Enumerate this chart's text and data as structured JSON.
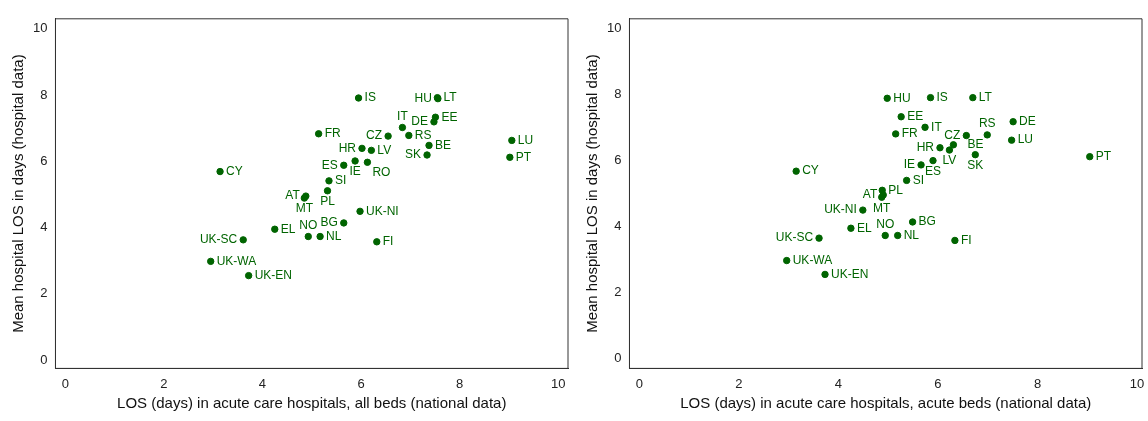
{
  "chart_data": [
    {
      "type": "scatter",
      "xlabel": "LOS (days) in acute care hospitals, all beds (national data)",
      "ylabel": "Mean hospital LOS in days (hospital data)",
      "color": "#006400",
      "marker": "circle",
      "grid": false,
      "legend": false,
      "xlim": [
        -0.2,
        10.2
      ],
      "xticks": [
        0,
        2,
        4,
        6,
        8,
        10
      ],
      "ylim": [
        -0.25,
        10.3
      ],
      "yticks": [
        0,
        2,
        4,
        6,
        8,
        10
      ],
      "x": [
        5.95,
        7.55,
        7.56,
        7.51,
        7.48,
        6.84,
        6.55,
        6.97,
        5.14,
        6.02,
        6.21,
        7.38,
        7.34,
        9.06,
        9.02,
        5.88,
        5.65,
        6.13,
        3.14,
        5.35,
        5.32,
        4.88,
        4.85,
        5.98,
        5.65,
        4.25,
        3.61,
        4.93,
        5.17,
        6.32,
        2.95,
        3.72
      ],
      "values": [
        7.91,
        7.92,
        7.89,
        7.33,
        7.19,
        7.02,
        6.76,
        6.78,
        6.83,
        6.39,
        6.33,
        6.48,
        6.19,
        6.63,
        6.12,
        6.01,
        5.88,
        5.97,
        5.69,
        5.41,
        5.11,
        4.95,
        4.89,
        4.49,
        4.14,
        3.95,
        3.63,
        3.73,
        3.73,
        3.57,
        2.98,
        2.55
      ],
      "annotations": [
        {
          "text": "IS",
          "x": 5.95,
          "y": 7.91
        },
        {
          "text": "LT",
          "x": 7.55,
          "y": 7.92
        },
        {
          "text": "HU",
          "x": 7.56,
          "y": 7.89
        },
        {
          "text": "EE",
          "x": 7.51,
          "y": 7.33
        },
        {
          "text": "DE",
          "x": 7.48,
          "y": 7.19
        },
        {
          "text": "IT",
          "x": 6.84,
          "y": 7.02
        },
        {
          "text": "CZ",
          "x": 6.55,
          "y": 6.76
        },
        {
          "text": "RS",
          "x": 6.97,
          "y": 6.78
        },
        {
          "text": "FR",
          "x": 5.14,
          "y": 6.83
        },
        {
          "text": "HR",
          "x": 6.02,
          "y": 6.39
        },
        {
          "text": "LV",
          "x": 6.21,
          "y": 6.33
        },
        {
          "text": "BE",
          "x": 7.38,
          "y": 6.48
        },
        {
          "text": "SK",
          "x": 7.34,
          "y": 6.19
        },
        {
          "text": "LU",
          "x": 9.06,
          "y": 6.63
        },
        {
          "text": "PT",
          "x": 9.02,
          "y": 6.12
        },
        {
          "text": "IE",
          "x": 5.88,
          "y": 6.01
        },
        {
          "text": "ES",
          "x": 5.65,
          "y": 5.88
        },
        {
          "text": "RO",
          "x": 6.13,
          "y": 5.97
        },
        {
          "text": "CY",
          "x": 3.14,
          "y": 5.69
        },
        {
          "text": "SI",
          "x": 5.35,
          "y": 5.41
        },
        {
          "text": "PL",
          "x": 5.32,
          "y": 5.11
        },
        {
          "text": "AT",
          "x": 4.88,
          "y": 4.95
        },
        {
          "text": "MT",
          "x": 4.85,
          "y": 4.89
        },
        {
          "text": "UK-NI",
          "x": 5.98,
          "y": 4.49
        },
        {
          "text": "BG",
          "x": 5.65,
          "y": 4.14
        },
        {
          "text": "EL",
          "x": 4.25,
          "y": 3.95
        },
        {
          "text": "UK-SC",
          "x": 3.61,
          "y": 3.63
        },
        {
          "text": "NO",
          "x": 4.93,
          "y": 3.73
        },
        {
          "text": "NL",
          "x": 5.17,
          "y": 3.73
        },
        {
          "text": "FI",
          "x": 6.32,
          "y": 3.57
        },
        {
          "text": "UK-WA",
          "x": 2.95,
          "y": 2.98
        },
        {
          "text": "UK-EN",
          "x": 3.72,
          "y": 2.55
        }
      ]
    },
    {
      "type": "scatter",
      "xlabel": "LOS (days) in acute care hospitals, acute beds (national data)",
      "ylabel": "Mean hospital LOS in days (hospital data)",
      "color": "#006400",
      "marker": "circle",
      "grid": false,
      "legend": false,
      "xlim": [
        -0.2,
        10.1
      ],
      "xticks": [
        0,
        2,
        4,
        6,
        8,
        10
      ],
      "ylim": [
        -0.3,
        10.3
      ],
      "yticks": [
        0,
        2,
        4,
        6,
        8,
        10
      ],
      "x": [
        4.98,
        5.85,
        6.7,
        5.26,
        7.51,
        5.74,
        5.15,
        6.57,
        6.31,
        6.99,
        6.23,
        6.04,
        7.48,
        6.75,
        9.05,
        5.9,
        5.66,
        3.15,
        5.37,
        4.88,
        4.9,
        4.87,
        4.49,
        5.49,
        4.25,
        3.61,
        4.94,
        5.19,
        6.34,
        2.96,
        3.73
      ],
      "values": [
        7.89,
        7.91,
        7.91,
        7.33,
        7.18,
        7.01,
        6.81,
        6.76,
        6.48,
        6.78,
        6.32,
        6.39,
        6.62,
        6.18,
        6.12,
        6.0,
        5.87,
        5.68,
        5.4,
        5.1,
        4.96,
        4.89,
        4.5,
        4.14,
        3.95,
        3.65,
        3.73,
        3.73,
        3.58,
        2.97,
        2.55
      ],
      "annotations": [
        {
          "text": "HU",
          "x": 4.98,
          "y": 7.89
        },
        {
          "text": "IS",
          "x": 5.85,
          "y": 7.91
        },
        {
          "text": "LT",
          "x": 6.7,
          "y": 7.91
        },
        {
          "text": "EE",
          "x": 5.26,
          "y": 7.33
        },
        {
          "text": "DE",
          "x": 7.51,
          "y": 7.18
        },
        {
          "text": "IT",
          "x": 5.74,
          "y": 7.01
        },
        {
          "text": "FR",
          "x": 5.15,
          "y": 6.81
        },
        {
          "text": "CZ",
          "x": 6.57,
          "y": 6.76
        },
        {
          "text": "BE",
          "x": 6.31,
          "y": 6.48
        },
        {
          "text": "RS",
          "x": 6.99,
          "y": 6.78
        },
        {
          "text": "LV",
          "x": 6.23,
          "y": 6.32
        },
        {
          "text": "HR",
          "x": 6.04,
          "y": 6.39
        },
        {
          "text": "LU",
          "x": 7.48,
          "y": 6.62
        },
        {
          "text": "SK",
          "x": 6.75,
          "y": 6.18
        },
        {
          "text": "PT",
          "x": 9.05,
          "y": 6.12
        },
        {
          "text": "ES",
          "x": 5.9,
          "y": 6.0
        },
        {
          "text": "IE",
          "x": 5.66,
          "y": 5.87
        },
        {
          "text": "CY",
          "x": 3.15,
          "y": 5.68
        },
        {
          "text": "SI",
          "x": 5.37,
          "y": 5.4
        },
        {
          "text": "PL",
          "x": 4.88,
          "y": 5.1
        },
        {
          "text": "AT",
          "x": 4.9,
          "y": 4.96
        },
        {
          "text": "MT",
          "x": 4.87,
          "y": 4.89
        },
        {
          "text": "UK-NI",
          "x": 4.49,
          "y": 4.5
        },
        {
          "text": "BG",
          "x": 5.49,
          "y": 4.14
        },
        {
          "text": "EL",
          "x": 4.25,
          "y": 3.95
        },
        {
          "text": "UK-SC",
          "x": 3.61,
          "y": 3.65
        },
        {
          "text": "NO",
          "x": 4.94,
          "y": 3.73
        },
        {
          "text": "NL",
          "x": 5.19,
          "y": 3.73
        },
        {
          "text": "FI",
          "x": 6.34,
          "y": 3.58
        },
        {
          "text": "UK-WA",
          "x": 2.96,
          "y": 2.97
        },
        {
          "text": "UK-EN",
          "x": 3.73,
          "y": 2.55
        }
      ]
    }
  ]
}
